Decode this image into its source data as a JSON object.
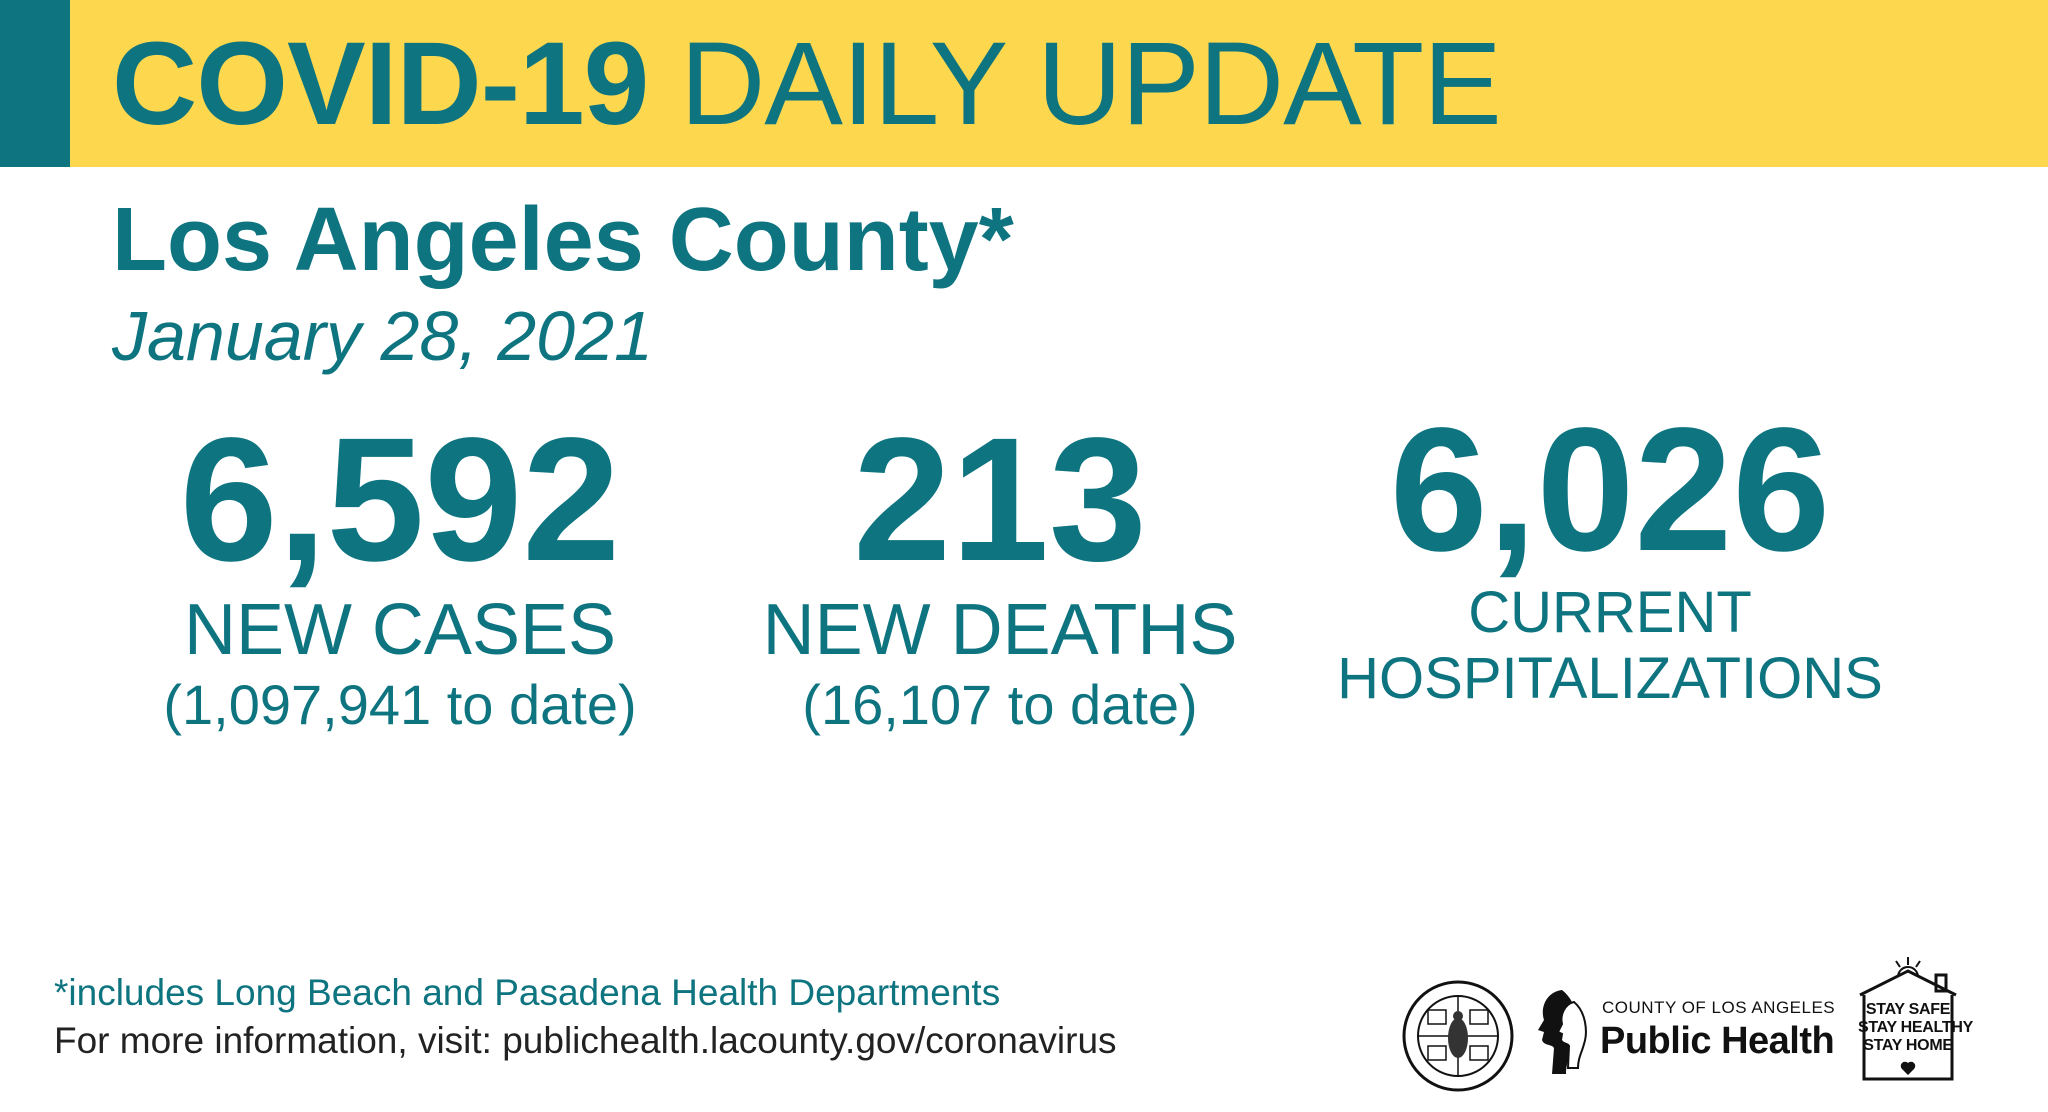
{
  "banner": {
    "title_bold": "COVID-19",
    "title_regular": "DAILY UPDATE",
    "background_color": "#fdd84f",
    "accent_color": "#0d7480"
  },
  "header": {
    "subtitle": "Los Angeles County*",
    "date": "January 28, 2021"
  },
  "stats": {
    "cases": {
      "value": "6,592",
      "label": "NEW CASES",
      "to_date": "(1,097,941 to date)"
    },
    "deaths": {
      "value": "213",
      "label": "NEW DEATHS",
      "to_date": "(16,107 to date)"
    },
    "hospitalizations": {
      "value": "6,026",
      "label_line1": "CURRENT",
      "label_line2": "HOSPITALIZATIONS"
    }
  },
  "footer": {
    "footnote": "*includes Long Beach and Pasadena Health Departments",
    "info": "For more information, visit: publichealth.lacounty.gov/coronavirus"
  },
  "logos": {
    "seal_text_top": "COUNTY OF LOS ANGELES",
    "seal_text_bottom": "CALIFORNIA",
    "public_health_small": "COUNTY OF LOS ANGELES",
    "public_health_big": "Public Health",
    "stay_lines": [
      "STAY SAFE",
      "STAY HEALTHY",
      "STAY HOME"
    ]
  },
  "colors": {
    "primary_text": "#0d7480",
    "info_text": "#222222"
  }
}
